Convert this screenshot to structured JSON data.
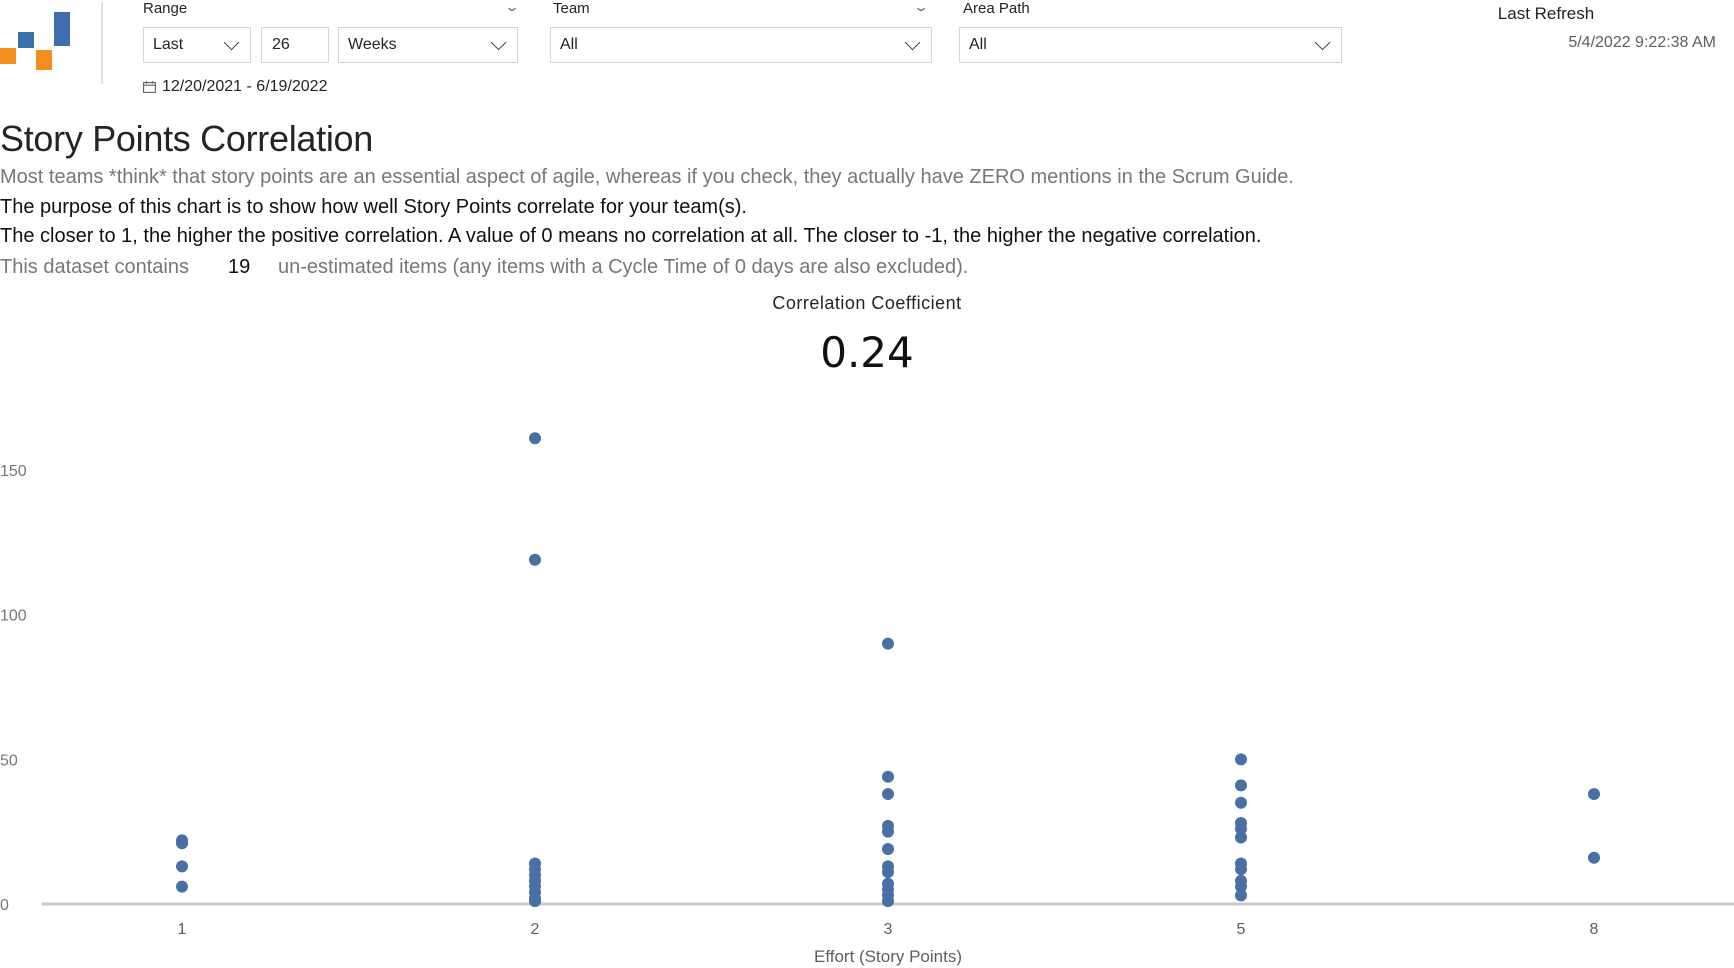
{
  "filters": {
    "range": {
      "label": "Range",
      "mode": "Last",
      "count": "26",
      "unit": "Weeks",
      "dates": "12/20/2021 - 6/19/2022"
    },
    "team": {
      "label": "Team",
      "value": "All"
    },
    "area_path": {
      "label": "Area Path",
      "value": "All"
    }
  },
  "refresh": {
    "label": "Last Refresh",
    "value": "5/4/2022 9:22:38 AM"
  },
  "heading": {
    "title": "Story Points Correlation",
    "line1": "Most teams *think* that story points are an essential aspect of agile, whereas if you check, they actually have ZERO mentions in the Scrum Guide.",
    "line2": "The purpose of this chart is to show how well Story Points correlate for your team(s).",
    "line3": "The closer to 1, the higher the positive correlation. A value of 0 means no correlation at all. The closer to -1, the higher the negative correlation.",
    "line4_prefix": "This dataset contains",
    "line4_count": "19",
    "line4_suffix": "un-estimated items (any items with a Cycle Time of 0 days are also excluded)."
  },
  "card": {
    "label": "Correlation Coefficient",
    "value": "0.24"
  },
  "colors": {
    "accent_orange": "#f28e1e",
    "accent_blue": "#3e6fad",
    "point": "#4a6fa5"
  },
  "chart_data": {
    "type": "scatter",
    "xlabel": "Effort (Story Points)",
    "ylabel": "",
    "categories": [
      "1",
      "2",
      "3",
      "5",
      "8"
    ],
    "yticks": [
      0,
      50,
      100,
      150
    ],
    "ylim": [
      0,
      165
    ],
    "grid": false,
    "points": [
      {
        "x": "1",
        "y": 22
      },
      {
        "x": "1",
        "y": 21
      },
      {
        "x": "1",
        "y": 13
      },
      {
        "x": "1",
        "y": 6
      },
      {
        "x": "2",
        "y": 161
      },
      {
        "x": "2",
        "y": 119
      },
      {
        "x": "2",
        "y": 14
      },
      {
        "x": "2",
        "y": 12
      },
      {
        "x": "2",
        "y": 10
      },
      {
        "x": "2",
        "y": 8
      },
      {
        "x": "2",
        "y": 6
      },
      {
        "x": "2",
        "y": 4
      },
      {
        "x": "2",
        "y": 2
      },
      {
        "x": "2",
        "y": 1
      },
      {
        "x": "3",
        "y": 90
      },
      {
        "x": "3",
        "y": 44
      },
      {
        "x": "3",
        "y": 38
      },
      {
        "x": "3",
        "y": 27
      },
      {
        "x": "3",
        "y": 25
      },
      {
        "x": "3",
        "y": 19
      },
      {
        "x": "3",
        "y": 13
      },
      {
        "x": "3",
        "y": 11
      },
      {
        "x": "3",
        "y": 7
      },
      {
        "x": "3",
        "y": 5
      },
      {
        "x": "3",
        "y": 3
      },
      {
        "x": "3",
        "y": 1
      },
      {
        "x": "5",
        "y": 50
      },
      {
        "x": "5",
        "y": 41
      },
      {
        "x": "5",
        "y": 35
      },
      {
        "x": "5",
        "y": 28
      },
      {
        "x": "5",
        "y": 26
      },
      {
        "x": "5",
        "y": 23
      },
      {
        "x": "5",
        "y": 14
      },
      {
        "x": "5",
        "y": 12
      },
      {
        "x": "5",
        "y": 8
      },
      {
        "x": "5",
        "y": 6
      },
      {
        "x": "5",
        "y": 3
      },
      {
        "x": "8",
        "y": 38
      },
      {
        "x": "8",
        "y": 16
      }
    ]
  }
}
